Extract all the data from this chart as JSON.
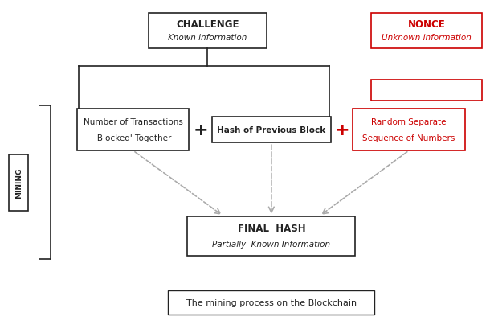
{
  "bg_color": "#ffffff",
  "title_box_text": "The mining process on the Blockchain",
  "challenge_title": "CHALLENGE",
  "challenge_sub": "Known information",
  "nonce_title": "NONCE",
  "nonce_sub": "Unknown information",
  "box1_line1": "Number of Transactions",
  "box1_line2": "'Blocked' Together",
  "box2_text": "Hash of Previous Block",
  "box3_line1": "Random Separate",
  "box3_line2": "Sequence of Numbers",
  "final_title": "FINAL  HASH",
  "final_sub": "Partially  Known Information",
  "mining_text": "MINING",
  "plus1_color": "#222222",
  "plus2_color": "#cc0000",
  "nonce_color": "#cc0000",
  "box3_color": "#cc0000",
  "black_color": "#222222",
  "arrow_color": "#aaaaaa",
  "box_edge_color": "#222222",
  "nonce_box_color": "#cc0000"
}
